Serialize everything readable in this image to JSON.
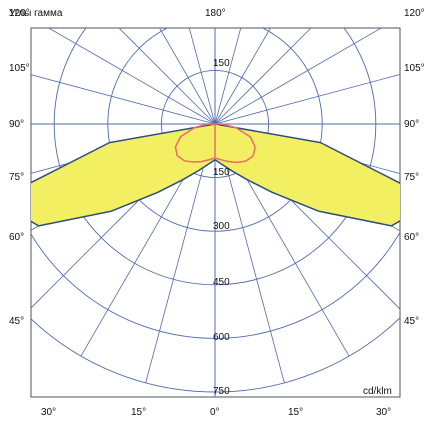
{
  "chart_data": {
    "type": "polar-luminous-intensity",
    "title": "Углы гамма",
    "unit_label": "cd/klm",
    "radial_ticks": [
      150,
      300,
      450,
      600,
      750
    ],
    "radial_max": 750,
    "angle_labels": {
      "left_top": [
        "120°",
        "105°",
        "90°",
        "75°",
        "60°",
        "45°"
      ],
      "right_top": [
        "120°",
        "105°",
        "90°",
        "75°",
        "60°",
        "45°"
      ],
      "bottom": [
        "30°",
        "15°",
        "0°",
        "15°",
        "30°"
      ],
      "top_center": "180°"
    },
    "series": [
      {
        "color": "#2e4f7c",
        "fill": "#f2ef63",
        "points": [
          [
            90,
            0
          ],
          [
            80,
            300
          ],
          [
            72,
            560
          ],
          [
            66,
            610
          ],
          [
            60,
            570
          ],
          [
            50,
            380
          ],
          [
            40,
            250
          ],
          [
            30,
            180
          ],
          [
            20,
            140
          ],
          [
            10,
            115
          ],
          [
            0,
            100
          ],
          [
            -10,
            115
          ],
          [
            -20,
            140
          ],
          [
            -30,
            180
          ],
          [
            -40,
            250
          ],
          [
            -50,
            380
          ],
          [
            -60,
            570
          ],
          [
            -66,
            610
          ],
          [
            -72,
            560
          ],
          [
            -80,
            300
          ],
          [
            -90,
            0
          ]
        ]
      },
      {
        "color": "#f06a6a",
        "fill": "none",
        "points": [
          [
            0,
            0
          ],
          [
            0,
            95
          ],
          [
            -10,
            102
          ],
          [
            -20,
            112
          ],
          [
            -30,
            123
          ],
          [
            -40,
            134
          ],
          [
            -50,
            138
          ],
          [
            -60,
            128
          ],
          [
            -70,
            102
          ],
          [
            -80,
            58
          ],
          [
            -90,
            20
          ],
          [
            180,
            0
          ],
          [
            90,
            20
          ],
          [
            80,
            60
          ],
          [
            70,
            105
          ],
          [
            60,
            130
          ],
          [
            50,
            139
          ],
          [
            40,
            135
          ],
          [
            30,
            124
          ],
          [
            20,
            112
          ],
          [
            10,
            102
          ],
          [
            0,
            95
          ]
        ]
      }
    ]
  }
}
